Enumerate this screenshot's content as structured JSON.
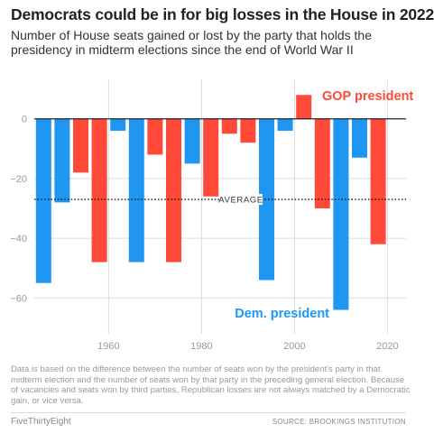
{
  "header": {
    "title": "Democrats could be in for big losses in the House in 2022",
    "subtitle": "Number of House seats gained or lost by the party that holds the presidency in midterm elections since the end of World War II"
  },
  "chart_data": {
    "type": "bar",
    "title": "Democrats could be in for big losses in the House in 2022",
    "xlabel": "",
    "ylabel": "",
    "x_ticks": [
      "1960",
      "1980",
      "2000",
      "2020"
    ],
    "x_tick_values": [
      1960,
      1980,
      2000,
      2020
    ],
    "y_ticks": [
      "0",
      "−20",
      "−40",
      "−60"
    ],
    "y_tick_values": [
      0,
      -20,
      -40,
      -60
    ],
    "ylim": [
      -72,
      12
    ],
    "xlim": [
      1944,
      2024
    ],
    "grid": true,
    "series": [
      {
        "name": "Dem. president",
        "color": "#1f97f2",
        "points": [
          {
            "year": 1946,
            "value": -55
          },
          {
            "year": 1950,
            "value": -28
          },
          {
            "year": 1962,
            "value": -4
          },
          {
            "year": 1966,
            "value": -48
          },
          {
            "year": 1978,
            "value": -15
          },
          {
            "year": 1994,
            "value": -54
          },
          {
            "year": 1998,
            "value": -4
          },
          {
            "year": 2010,
            "value": -64
          },
          {
            "year": 2014,
            "value": -13
          }
        ]
      },
      {
        "name": "GOP president",
        "color": "#ff4a3a",
        "points": [
          {
            "year": 1954,
            "value": -18
          },
          {
            "year": 1958,
            "value": -48
          },
          {
            "year": 1970,
            "value": -12
          },
          {
            "year": 1974,
            "value": -48
          },
          {
            "year": 1982,
            "value": -26
          },
          {
            "year": 1986,
            "value": -5
          },
          {
            "year": 1990,
            "value": -8
          },
          {
            "year": 2002,
            "value": 8
          },
          {
            "year": 2006,
            "value": -30
          },
          {
            "year": 2018,
            "value": -42
          }
        ]
      }
    ],
    "average": {
      "label": "AVERAGE",
      "value": -27
    },
    "series_labels": {
      "gop": "GOP president",
      "dem": "Dem. president"
    }
  },
  "footer": {
    "note": "Data is based on the difference between the number of seats won by the president's party in that midterm election and the number of seats won by that party in the preceding general election. Because of vacancies and seats won by third parties, Republican losses are not always matched by a Democratic gain, or vice versa.",
    "credit": "FiveThirtyEight",
    "source": "SOURCE: BROOKINGS INSTITUTION"
  }
}
